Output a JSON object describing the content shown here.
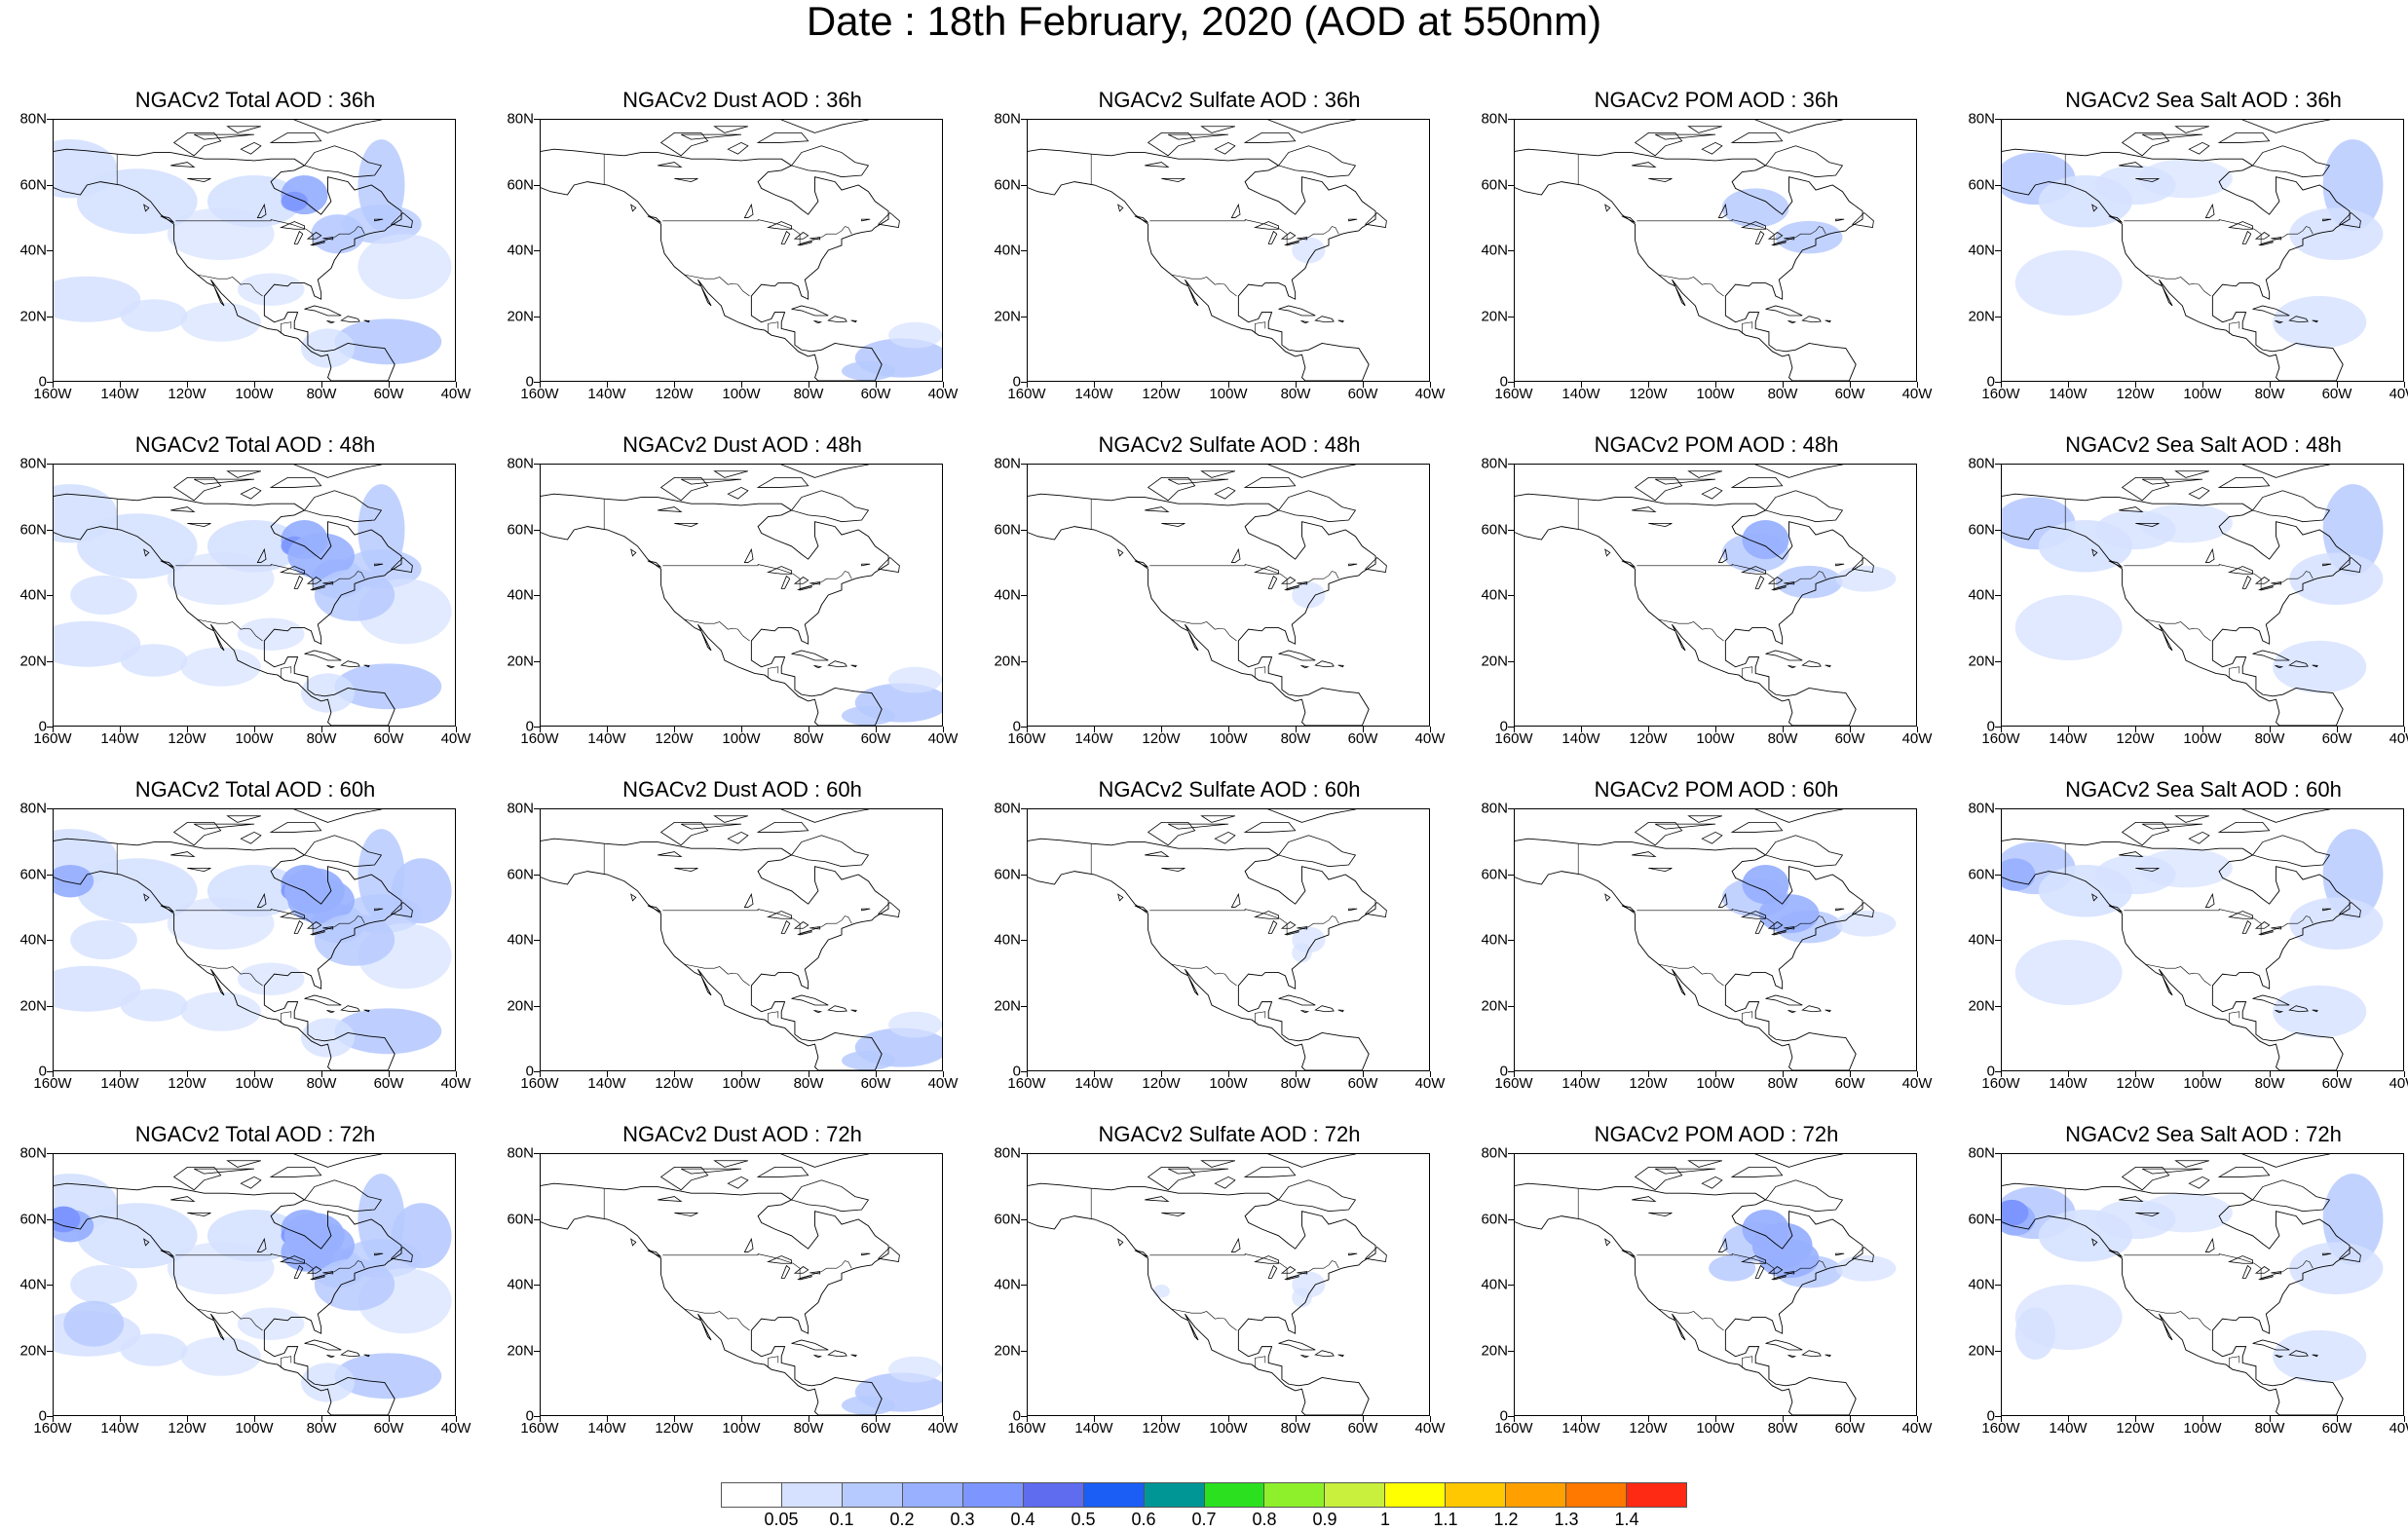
{
  "title": "Date : 18th February, 2020 (AOD at 550nm)",
  "y_axis_labels": [
    "80N",
    "60N",
    "40N",
    "20N",
    "0"
  ],
  "x_axis_labels": [
    "160W",
    "140W",
    "120W",
    "100W",
    "80W",
    "60W",
    "40W"
  ],
  "panels": [
    [
      {
        "title": "NGACv2 Total AOD : 36h",
        "species": "total",
        "hour": "36h"
      },
      {
        "title": "NGACv2 Dust AOD : 36h",
        "species": "dust",
        "hour": "36h"
      },
      {
        "title": "NGACv2 Sulfate AOD : 36h",
        "species": "sulfate",
        "hour": "36h"
      },
      {
        "title": "NGACv2 POM AOD : 36h",
        "species": "pom",
        "hour": "36h"
      },
      {
        "title": "NGACv2 Sea Salt AOD : 36h",
        "species": "seasalt",
        "hour": "36h"
      }
    ],
    [
      {
        "title": "NGACv2 Total AOD : 48h",
        "species": "total",
        "hour": "48h"
      },
      {
        "title": "NGACv2 Dust AOD : 48h",
        "species": "dust",
        "hour": "48h"
      },
      {
        "title": "NGACv2 Sulfate AOD : 48h",
        "species": "sulfate",
        "hour": "48h"
      },
      {
        "title": "NGACv2 POM AOD : 48h",
        "species": "pom",
        "hour": "48h"
      },
      {
        "title": "NGACv2 Sea Salt AOD : 48h",
        "species": "seasalt",
        "hour": "48h"
      }
    ],
    [
      {
        "title": "NGACv2 Total AOD : 60h",
        "species": "total",
        "hour": "60h"
      },
      {
        "title": "NGACv2 Dust AOD : 60h",
        "species": "dust",
        "hour": "60h"
      },
      {
        "title": "NGACv2 Sulfate AOD : 60h",
        "species": "sulfate",
        "hour": "60h"
      },
      {
        "title": "NGACv2 POM AOD : 60h",
        "species": "pom",
        "hour": "60h"
      },
      {
        "title": "NGACv2 Sea Salt AOD : 60h",
        "species": "seasalt",
        "hour": "60h"
      }
    ],
    [
      {
        "title": "NGACv2 Total AOD : 72h",
        "species": "total",
        "hour": "72h"
      },
      {
        "title": "NGACv2 Dust AOD : 72h",
        "species": "dust",
        "hour": "72h"
      },
      {
        "title": "NGACv2 Sulfate AOD : 72h",
        "species": "sulfate",
        "hour": "72h"
      },
      {
        "title": "NGACv2 POM AOD : 72h",
        "species": "pom",
        "hour": "72h"
      },
      {
        "title": "NGACv2 Sea Salt  AOD : 72h",
        "species": "seasalt",
        "hour": "72h"
      }
    ]
  ],
  "colorbar": {
    "colors": [
      "#ffffff",
      "#d5e1ff",
      "#b7caff",
      "#98b0ff",
      "#7d96ff",
      "#5f6cf0",
      "#1a5ef5",
      "#009696",
      "#2be01f",
      "#8ef02a",
      "#c8f03c",
      "#ffff00",
      "#ffc800",
      "#ffa000",
      "#ff7800",
      "#ff2a14"
    ],
    "labels": [
      "0.05",
      "0.1",
      "0.2",
      "0.3",
      "0.4",
      "0.5",
      "0.6",
      "0.7",
      "0.8",
      "0.9",
      "1",
      "1.1",
      "1.2",
      "1.3",
      "1.4"
    ]
  }
}
